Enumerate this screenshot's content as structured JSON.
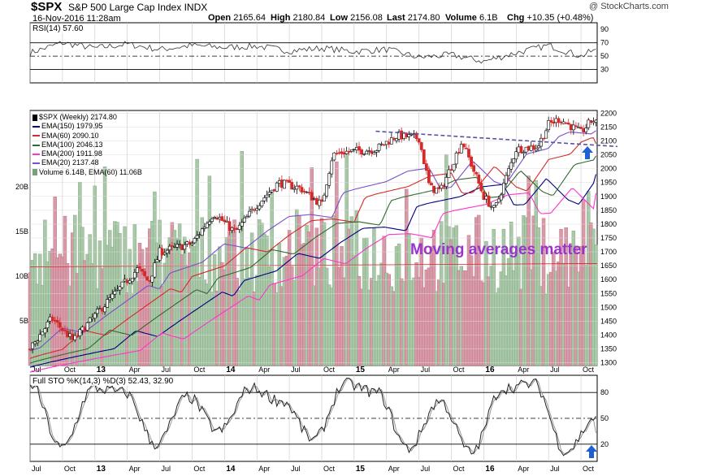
{
  "header": {
    "symbol": "$SPX",
    "name": "S&P 500 Large Cap Index",
    "exchange": "INDX",
    "datetime": "16-Nov-2016 11:28am",
    "quote": [
      {
        "label": "Open",
        "value": "2165.64"
      },
      {
        "label": "High",
        "value": "2180.84"
      },
      {
        "label": "Low",
        "value": "2156.08"
      },
      {
        "label": "Last",
        "value": "2174.80"
      },
      {
        "label": "Volume",
        "value": "6.1B"
      },
      {
        "label": "Chg",
        "value": "+10.35 (+0.48%)"
      }
    ],
    "logo": "@ StockCharts.com"
  },
  "annotation": "Moving averages matter",
  "chart_data": [
    {
      "type": "line",
      "panel": "rsi",
      "label": "RSI(14) 57.60",
      "ylim": [
        10,
        100
      ],
      "yticks": [
        90,
        70,
        50,
        30
      ],
      "reference_lines": [
        70,
        50,
        30
      ],
      "x": [
        "2012-07",
        "2012-10",
        "2013-01",
        "2013-04",
        "2013-07",
        "2013-10",
        "2014-01",
        "2014-04",
        "2014-07",
        "2014-10",
        "2015-01",
        "2015-04",
        "2015-07",
        "2015-10",
        "2016-01",
        "2016-04",
        "2016-07",
        "2016-10",
        "2016-11"
      ],
      "values": [
        55,
        70,
        62,
        68,
        60,
        66,
        63,
        65,
        58,
        62,
        57,
        60,
        48,
        52,
        42,
        55,
        66,
        50,
        57.6
      ]
    },
    {
      "type": "candlestick",
      "panel": "price",
      "title": "$SPX (Weekly) 2174.80",
      "ylim": [
        1290,
        2210
      ],
      "yticks": [
        2200,
        2150,
        2100,
        2050,
        2000,
        1950,
        1900,
        1850,
        1800,
        1750,
        1700,
        1650,
        1600,
        1550,
        1500,
        1450,
        1400,
        1350,
        1300
      ],
      "x_ticks": [
        "Jul",
        "Oct",
        "13",
        "Apr",
        "Jul",
        "Oct",
        "14",
        "Apr",
        "Jul",
        "Oct",
        "15",
        "Apr",
        "Jul",
        "Oct",
        "16",
        "Apr",
        "Jul",
        "Oct"
      ],
      "close_anchors": {
        "dates": [
          "2012-07",
          "2012-09",
          "2012-11",
          "2013-01",
          "2013-05",
          "2013-06",
          "2013-07",
          "2013-10",
          "2013-12",
          "2014-02",
          "2014-04",
          "2014-06",
          "2014-08",
          "2014-10",
          "2014-11",
          "2014-12",
          "2015-03",
          "2015-05",
          "2015-07",
          "2015-08",
          "2015-09",
          "2015-11",
          "2016-01",
          "2016-02",
          "2016-04",
          "2016-06",
          "2016-07",
          "2016-08",
          "2016-10",
          "2016-11"
        ],
        "values": [
          1350,
          1460,
          1380,
          1470,
          1640,
          1590,
          1700,
          1730,
          1840,
          1770,
          1870,
          1950,
          1930,
          1870,
          2050,
          2060,
          2070,
          2120,
          2110,
          1930,
          1920,
          2100,
          1900,
          1850,
          2070,
          2080,
          2160,
          2180,
          2130,
          2174.8
        ]
      },
      "moving_averages": [
        {
          "name": "EMA(150)",
          "value": "1979.95",
          "color": "#000080"
        },
        {
          "name": "EMA(60)",
          "value": "2090.10",
          "color": "#d42a2a"
        },
        {
          "name": "EMA(100)",
          "value": "2046.13",
          "color": "#2e6b2e"
        },
        {
          "name": "EMA(200)",
          "value": "1911.98",
          "color": "#ff33cc"
        },
        {
          "name": "EMA(20)",
          "value": "2137.48",
          "color": "#7b4fc9"
        }
      ],
      "ma_anchor_values": {
        "EMA(150)": {
          "start": 1300,
          "end": 1979.95
        },
        "EMA(60)": {
          "start": 1315,
          "end": 2090.1
        },
        "EMA(100)": {
          "start": 1305,
          "end": 2046.13
        },
        "EMA(200)": {
          "start": 1290,
          "end": 1911.98
        },
        "EMA(20)": {
          "start": 1345,
          "end": 2137.48
        }
      },
      "volume": {
        "label": "Volume 6.14B, EMA(60) 11.06B",
        "yticks": [
          "20B",
          "15B",
          "10B",
          "5B"
        ],
        "ylim_billions": [
          0,
          28
        ],
        "ema60_billions": 11.06
      },
      "trendline": {
        "from": {
          "date": "2015-03",
          "value": 2135
        },
        "to": {
          "date": "2016-11",
          "value": 2080
        },
        "style": "dashed",
        "color": "#5555aa"
      },
      "markers": [
        {
          "date": "2016-11",
          "shape": "up-arrow",
          "color": "#1f5fd6"
        }
      ]
    },
    {
      "type": "line",
      "panel": "stochastic",
      "label": "Full STO %K(14,3) %D(3) 52.43, 32.90",
      "ylim": [
        0,
        100
      ],
      "yticks": [
        80,
        50,
        20
      ],
      "reference_lines": [
        80,
        50,
        20
      ],
      "k_anchor_values": [
        90,
        15,
        85,
        80,
        20,
        75,
        35,
        85,
        70,
        25,
        90,
        80,
        15,
        70,
        10,
        85,
        90,
        12,
        52.43
      ],
      "d_last": 32.9,
      "markers": [
        {
          "date": "2016-11",
          "shape": "up-arrow",
          "color": "#1f5fd6"
        }
      ]
    }
  ]
}
